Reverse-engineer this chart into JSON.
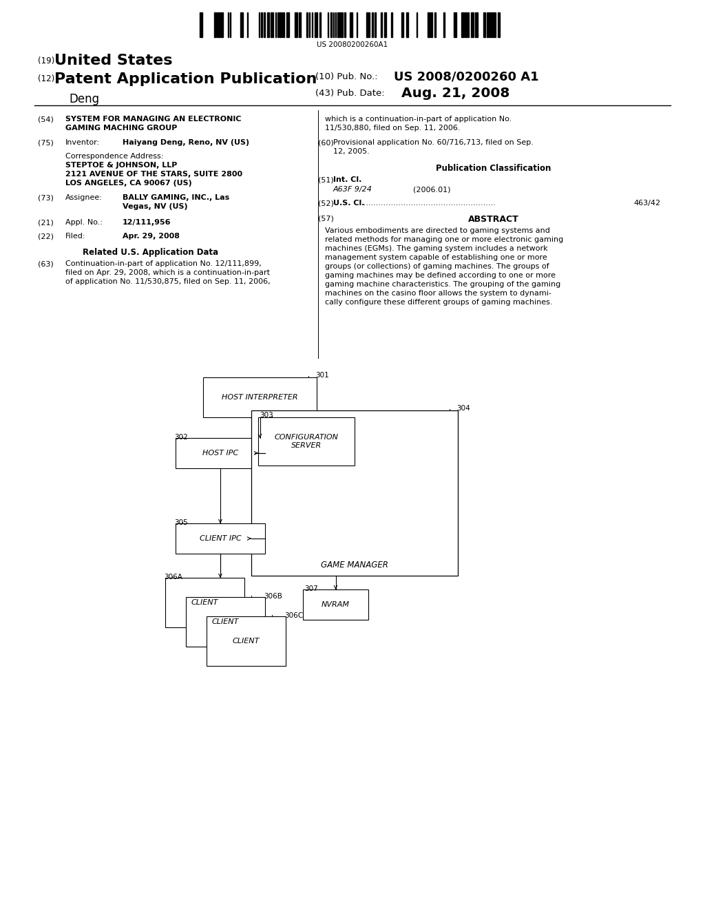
{
  "bg_color": "#ffffff",
  "barcode_text": "US 20080200260A1",
  "title_19": "(19)",
  "title_us": "United States",
  "title_12": "(12)",
  "title_pat": "Patent Application Publication",
  "title_deng": "Deng",
  "pub_no_label": "(10) Pub. No.:",
  "pub_no_val": "US 2008/0200260 A1",
  "pub_date_label": "(43) Pub. Date:",
  "pub_date_val": "Aug. 21, 2008",
  "field54_num": "(54)",
  "field54_title_line1": "SYSTEM FOR MANAGING AN ELECTRONIC",
  "field54_title_line2": "GAMING MACHING GROUP",
  "field75_num": "(75)",
  "field75_label": "Inventor:",
  "field75_val": "Haiyang Deng, Reno, NV (US)",
  "corr_label": "Correspondence Address:",
  "corr_line1": "STEPTOE & JOHNSON, LLP",
  "corr_line2": "2121 AVENUE OF THE STARS, SUITE 2800",
  "corr_line3": "LOS ANGELES, CA 90067 (US)",
  "field73_num": "(73)",
  "field73_label": "Assignee:",
  "field73_val_line1": "BALLY GAMING, INC., Las",
  "field73_val_line2": "Vegas, NV (US)",
  "field21_num": "(21)",
  "field21_label": "Appl. No.:",
  "field21_val": "12/111,956",
  "field22_num": "(22)",
  "field22_label": "Filed:",
  "field22_val": "Apr. 29, 2008",
  "related_title": "Related U.S. Application Data",
  "field63_num": "(63)",
  "field63_line1": "Continuation-in-part of application No. 12/111,899,",
  "field63_line2": "filed on Apr. 29, 2008, which is a continuation-in-part",
  "field63_line3": "of application No. 11/530,875, filed on Sep. 11, 2006,",
  "right_63_line1": "which is a continuation-in-part of application No.",
  "right_63_line2": "11/530,880, filed on Sep. 11, 2006.",
  "field60_num": "(60)",
  "field60_line1": "Provisional application No. 60/716,713, filed on Sep.",
  "field60_line2": "12, 2005.",
  "pub_class_title": "Publication Classification",
  "field51_num": "(51)",
  "field51_label": "Int. Cl.",
  "field51_val": "A63F 9/24",
  "field51_year": "(2006.01)",
  "field52_num": "(52)",
  "field52_label": "U.S. Cl.",
  "field52_dots": "......................................................",
  "field52_val": "463/42",
  "field57_num": "(57)",
  "field57_label": "ABSTRACT",
  "abstract_line1": "Various embodiments are directed to gaming systems and",
  "abstract_line2": "related methods for managing one or more electronic gaming",
  "abstract_line3": "machines (EGMs). The gaming system includes a network",
  "abstract_line4": "management system capable of establishing one or more",
  "abstract_line5": "groups (or collections) of gaming machines. The groups of",
  "abstract_line6": "gaming machines may be defined according to one or more",
  "abstract_line7": "gaming machine characteristics. The grouping of the gaming",
  "abstract_line8": "machines on the casino floor allows the system to dynami-",
  "abstract_line9": "cally configure these different groups of gaming machines."
}
